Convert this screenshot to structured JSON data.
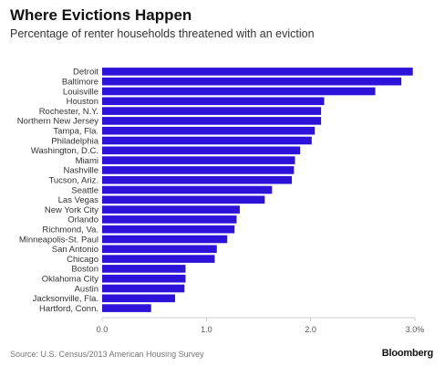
{
  "header": {
    "title": "Where Evictions Happen",
    "subtitle": "Percentage of renter households threatened with an eviction"
  },
  "footer": {
    "source": "Source: U.S. Census/2013 American Housing Survey",
    "brand": "Bloomberg"
  },
  "colors": {
    "bar": "#2d12d9",
    "axis": "#cccccc",
    "label": "#333333"
  },
  "chart_data": {
    "type": "bar",
    "orientation": "horizontal",
    "title": "Where Evictions Happen",
    "subtitle": "Percentage of renter households threatened with an eviction",
    "xlabel": "",
    "ylabel": "",
    "xlim": [
      0,
      3
    ],
    "ticks": [
      0,
      1,
      2,
      3
    ],
    "tick_labels": [
      "0.0",
      "1.0",
      "2.0",
      "3.0%"
    ],
    "grid": false,
    "categories": [
      "Detroit",
      "Baltimore",
      "Louisville",
      "Houston",
      "Rochester, N.Y.",
      "Northern New Jersey",
      "Tampa, Fla.",
      "Philadelphia",
      "Washington, D.C.",
      "Miami",
      "Nashville",
      "Tucson, Ariz.",
      "Seattle",
      "Las Vegas",
      "New York City",
      "Orlando",
      "Richmond, Va.",
      "Minneapolis-St. Paul",
      "San Antonio",
      "Chicago",
      "Boston",
      "Oklahoma City",
      "Austin",
      "Jacksonville, Fla.",
      "Hartford, Conn."
    ],
    "values": [
      2.98,
      2.87,
      2.62,
      2.13,
      2.1,
      2.1,
      2.04,
      2.01,
      1.9,
      1.85,
      1.84,
      1.82,
      1.63,
      1.56,
      1.32,
      1.29,
      1.27,
      1.2,
      1.1,
      1.08,
      0.8,
      0.8,
      0.79,
      0.7,
      0.47
    ]
  }
}
